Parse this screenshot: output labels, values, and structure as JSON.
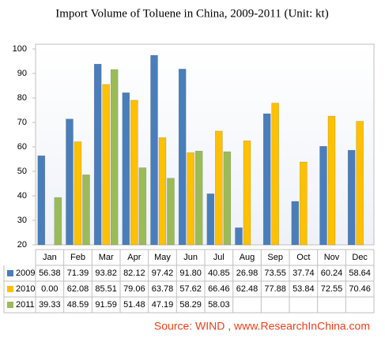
{
  "chart_data": {
    "type": "bar",
    "title": "Import Volume of Toluene in China, 2009-2011 (Unit: kt)",
    "categories": [
      "Jan",
      "Feb",
      "Mar",
      "Apr",
      "May",
      "Jun",
      "Jul",
      "Aug",
      "Sep",
      "Oct",
      "Nov",
      "Dec"
    ],
    "series": [
      {
        "name": "2009",
        "color": "#4a7ebb",
        "values": [
          56.38,
          71.39,
          93.82,
          82.12,
          97.42,
          91.8,
          40.85,
          26.98,
          73.55,
          37.74,
          60.24,
          58.64
        ],
        "value_labels": [
          "56.38",
          "71.39",
          "93.82",
          "82.12",
          "97.42",
          "91.80",
          "40.85",
          "26.98",
          "73.55",
          "37.74",
          "60.24",
          "58.64"
        ]
      },
      {
        "name": "2010",
        "color": "#ffc000",
        "values": [
          0,
          62.08,
          85.51,
          79.06,
          63.78,
          57.62,
          66.46,
          62.48,
          77.88,
          53.84,
          72.55,
          70.46
        ],
        "value_labels": [
          "0.00",
          "62.08",
          "85.51",
          "79.06",
          "63.78",
          "57.62",
          "66.46",
          "62.48",
          "77.88",
          "53.84",
          "72.55",
          "70.46"
        ]
      },
      {
        "name": "2011",
        "color": "#9bbb59",
        "values": [
          39.33,
          48.59,
          91.59,
          51.48,
          47.19,
          58.29,
          58.03,
          null,
          null,
          null,
          null,
          null
        ],
        "value_labels": [
          "39.33",
          "48.59",
          "91.59",
          "51.48",
          "47.19",
          "58.29",
          "58.03",
          null,
          null,
          null,
          null,
          null
        ]
      }
    ],
    "ylim": [
      20,
      100
    ],
    "yticks": [
      20,
      30,
      40,
      50,
      60,
      70,
      80,
      90,
      100
    ],
    "grid": false,
    "source": "Source: WIND , www.ResearchInChina.com"
  }
}
